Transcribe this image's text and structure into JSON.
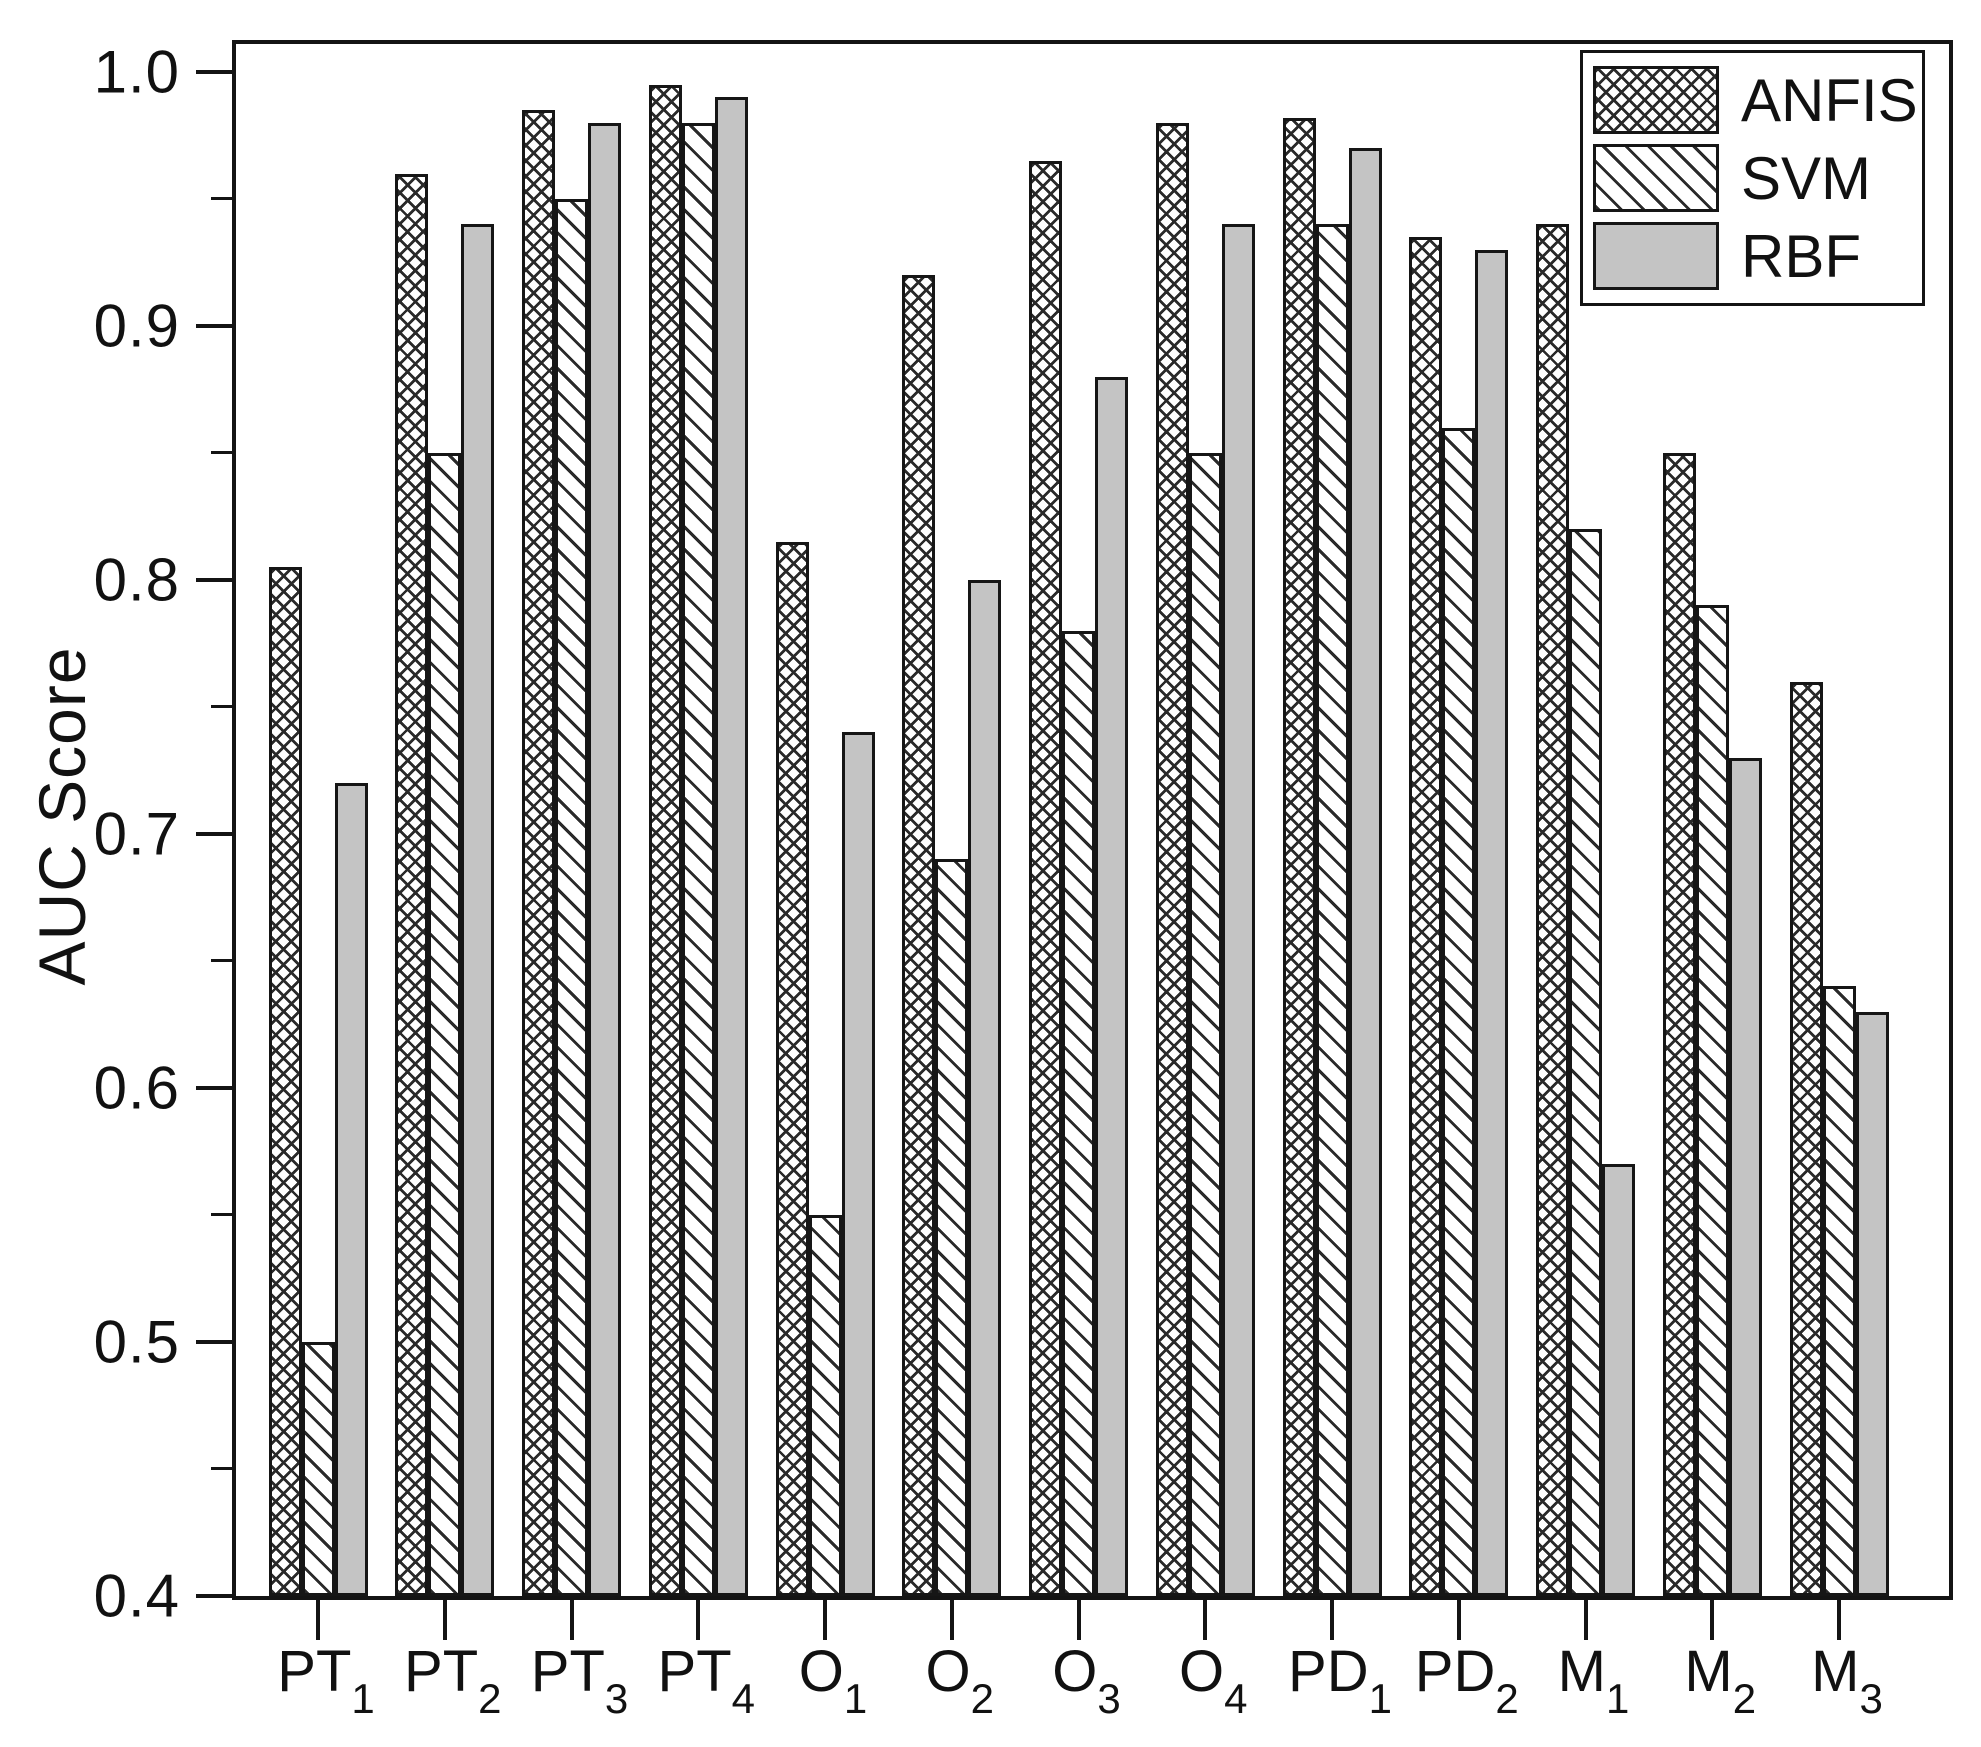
{
  "chart_data": {
    "type": "bar",
    "title": "",
    "ylabel": "AUC Score",
    "xlabel": "",
    "ylim": [
      0.4,
      1.011
    ],
    "grid": false,
    "legend_position": "top-right",
    "yticks_major": [
      {
        "value": 0.4,
        "label": "0.4"
      },
      {
        "value": 0.5,
        "label": "0.5"
      },
      {
        "value": 0.6,
        "label": "0.6"
      },
      {
        "value": 0.7,
        "label": "0.7"
      },
      {
        "value": 0.8,
        "label": "0.8"
      },
      {
        "value": 0.9,
        "label": "0.9"
      },
      {
        "value": 1.0,
        "label": "1.0"
      }
    ],
    "yticks_minor": [
      0.45,
      0.55,
      0.65,
      0.75,
      0.85,
      0.95
    ],
    "categories": [
      {
        "base": "PT",
        "sub": "1"
      },
      {
        "base": "PT",
        "sub": "2"
      },
      {
        "base": "PT",
        "sub": "3"
      },
      {
        "base": "PT",
        "sub": "4"
      },
      {
        "base": "O",
        "sub": "1"
      },
      {
        "base": "O",
        "sub": "2"
      },
      {
        "base": "O",
        "sub": "3"
      },
      {
        "base": "O",
        "sub": "4"
      },
      {
        "base": "PD",
        "sub": "1"
      },
      {
        "base": "PD",
        "sub": "2"
      },
      {
        "base": "M",
        "sub": "1"
      },
      {
        "base": "M",
        "sub": "2"
      },
      {
        "base": "M",
        "sub": "3"
      }
    ],
    "series": [
      {
        "name": "ANFIS",
        "pattern": "crosshatch",
        "values": [
          0.805,
          0.96,
          0.985,
          0.995,
          0.815,
          0.92,
          0.965,
          0.98,
          0.982,
          0.935,
          0.94,
          0.85,
          0.76
        ]
      },
      {
        "name": "SVM",
        "pattern": "diagonal",
        "values": [
          0.5,
          0.85,
          0.95,
          0.98,
          0.55,
          0.69,
          0.78,
          0.85,
          0.94,
          0.86,
          0.82,
          0.79,
          0.64
        ]
      },
      {
        "name": "RBF",
        "pattern": "solid",
        "values": [
          0.72,
          0.94,
          0.98,
          0.99,
          0.74,
          0.8,
          0.88,
          0.94,
          0.97,
          0.93,
          0.57,
          0.73,
          0.63
        ]
      }
    ],
    "colors": {
      "frame": "#141414",
      "bar_border": "#161616",
      "hatch_line": "#2a2a2a",
      "rbf_fill": "#c4c4c4",
      "background": "#ffffff"
    }
  }
}
